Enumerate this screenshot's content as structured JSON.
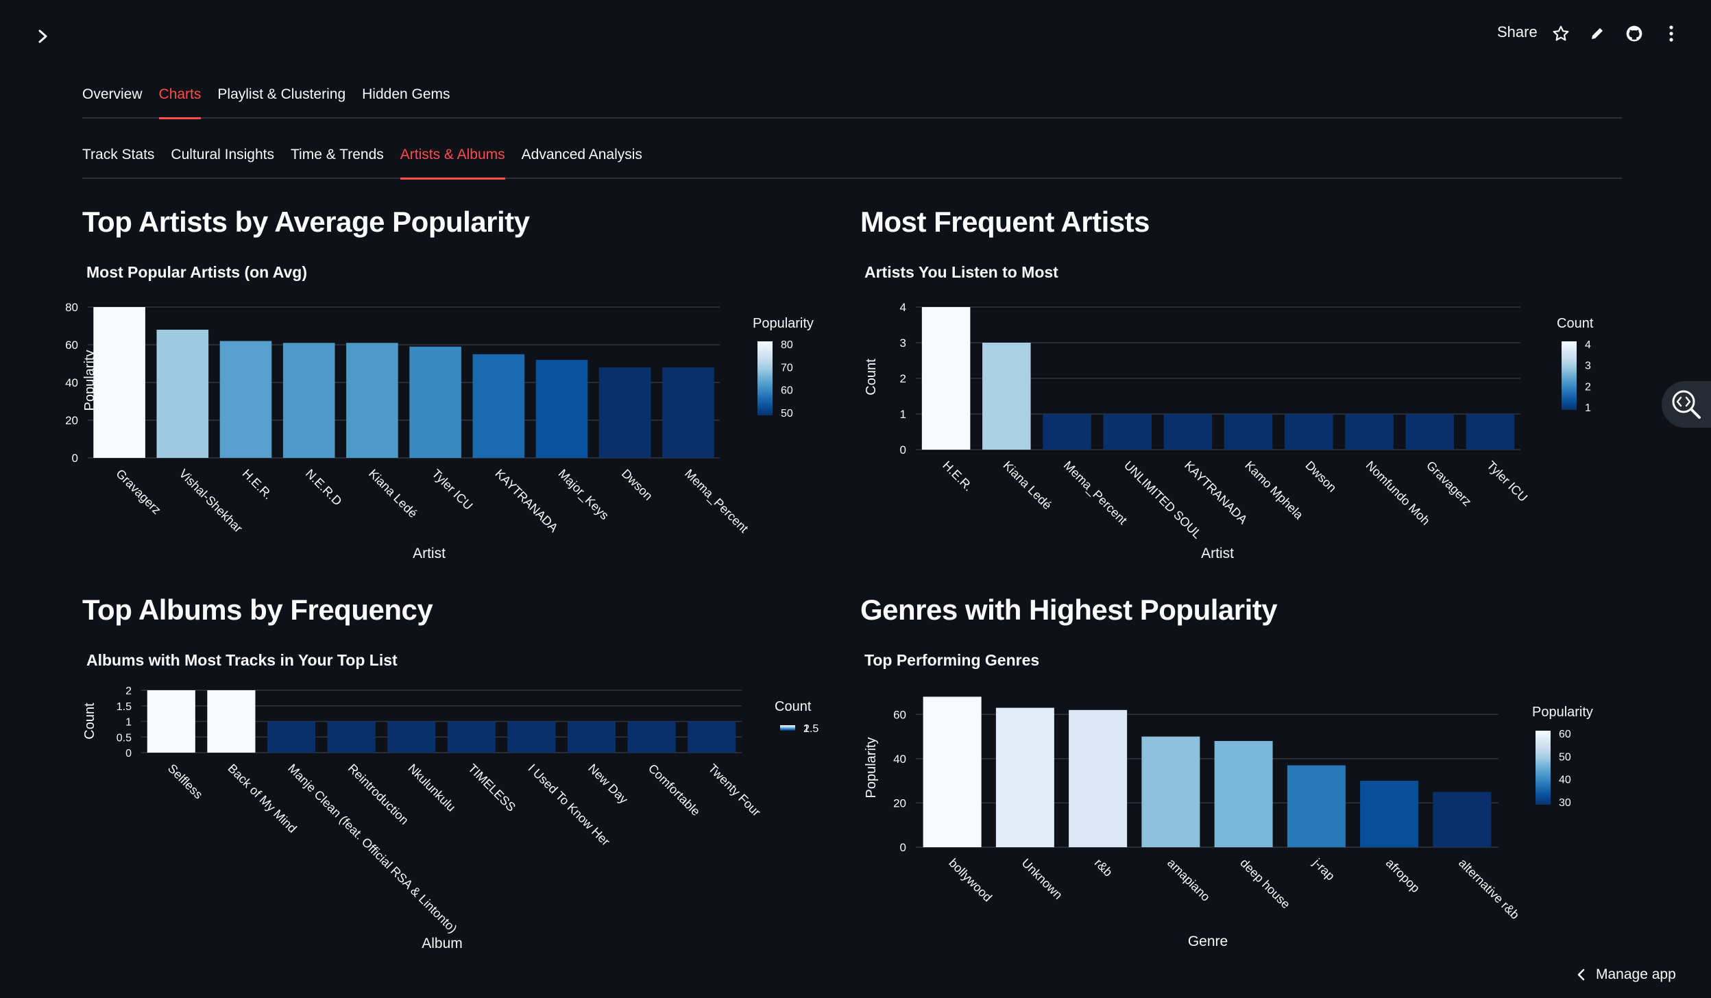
{
  "header": {
    "share_label": "Share",
    "icons": [
      "chevron-right-icon",
      "star-icon",
      "pencil-icon",
      "github-icon",
      "more-vertical-icon"
    ]
  },
  "tabs_main": [
    "Overview",
    "Charts",
    "Playlist & Clustering",
    "Hidden Gems"
  ],
  "tabs_main_active": "Charts",
  "tabs_sub": [
    "Track Stats",
    "Cultural Insights",
    "Time & Trends",
    "Artists & Albums",
    "Advanced Analysis"
  ],
  "tabs_sub_active": "Artists & Albums",
  "sections": {
    "artists_popularity": "Top Artists by Average Popularity",
    "frequent_artists": "Most Frequent Artists",
    "albums_frequency": "Top Albums by Frequency",
    "genres_popularity": "Genres with Highest Popularity"
  },
  "colors": {
    "accent": "#ff4b4b",
    "background": "#0e1117"
  },
  "footer": {
    "manage_label": "Manage app"
  },
  "chart_data": [
    {
      "type": "bar",
      "title": "Most Popular Artists (on Avg)",
      "xlabel": "Artist",
      "ylabel": "Popularity",
      "categories": [
        "Gravagerz",
        "Vishal-Shekhar",
        "H.E.R.",
        "N.E.R.D",
        "Kiana Ledé",
        "Tyler ICU",
        "KAYTRANADA",
        "Major_Keys",
        "Dwson",
        "Mema_Percent"
      ],
      "values": [
        80,
        68,
        62,
        61,
        61,
        59,
        55,
        52,
        48,
        48
      ],
      "ylim": [
        0,
        80
      ],
      "yticks": [
        0,
        20,
        40,
        60,
        80
      ],
      "colorbar": {
        "title": "Popularity",
        "ticks": [
          "80",
          "70",
          "60",
          "50"
        ],
        "range": [
          48,
          80
        ]
      },
      "grid": true
    },
    {
      "type": "bar",
      "title": "Artists You Listen to Most",
      "xlabel": "Artist",
      "ylabel": "Count",
      "categories": [
        "H.E.R.",
        "Kiana Ledé",
        "Mema_Percent",
        "UNLIMITED SOUL",
        "KAYTRANADA",
        "Kamo Mphela",
        "Dwson",
        "Nomfundo Moh",
        "Gravagerz",
        "Tyler ICU"
      ],
      "values": [
        4,
        3,
        1,
        1,
        1,
        1,
        1,
        1,
        1,
        1
      ],
      "ylim": [
        0,
        4
      ],
      "yticks": [
        0,
        1,
        2,
        3,
        4
      ],
      "colorbar": {
        "title": "Count",
        "ticks": [
          "4",
          "3",
          "2",
          "1"
        ],
        "range": [
          1,
          4
        ]
      },
      "grid": true
    },
    {
      "type": "bar",
      "title": "Albums with Most Tracks in Your Top List",
      "xlabel": "Album",
      "ylabel": "Count",
      "categories": [
        "Selfless",
        "Back of My Mind",
        "Manje Clean (feat. Official RSA & Lintonto)",
        "Reintroduction",
        "Nkulunkulu",
        "TIMELESS",
        "I Used To Know Her",
        "New Day",
        "Comfortable",
        "Twenty Four"
      ],
      "values": [
        2,
        2,
        1,
        1,
        1,
        1,
        1,
        1,
        1,
        1
      ],
      "ylim": [
        0,
        2
      ],
      "yticks": [
        "0",
        "0.5",
        "1",
        "1.5",
        "2"
      ],
      "colorbar": {
        "title": "Count",
        "ticks": [
          "2",
          "1.5",
          "1"
        ],
        "range": [
          1,
          2
        ]
      },
      "grid": true
    },
    {
      "type": "bar",
      "title": "Top Performing Genres",
      "xlabel": "Genre",
      "ylabel": "Popularity",
      "categories": [
        "bollywood",
        "Unknown",
        "r&b",
        "amapiano",
        "deep house",
        "j-rap",
        "afropop",
        "alternative r&b"
      ],
      "values": [
        68,
        63,
        62,
        50,
        48,
        37,
        30,
        25
      ],
      "ylim": [
        0,
        70
      ],
      "yticks": [
        0,
        20,
        40,
        60
      ],
      "colorbar": {
        "title": "Popularity",
        "ticks": [
          "60",
          "50",
          "40",
          "30"
        ],
        "range": [
          25,
          68
        ]
      },
      "grid": true
    }
  ]
}
